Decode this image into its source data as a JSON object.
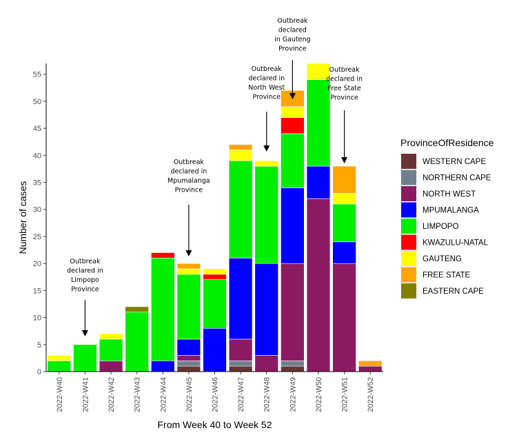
{
  "chart_data": {
    "type": "bar",
    "stacked": true,
    "xlabel": "From Week 40 to Week 52",
    "ylabel": "Number of cases",
    "ylim": [
      0,
      57
    ],
    "yticks": [
      0,
      5,
      10,
      15,
      20,
      25,
      30,
      35,
      40,
      45,
      50,
      55
    ],
    "grid": false,
    "legend_position": "right",
    "legend_title": "ProvinceOfResidence",
    "categories": [
      "2022-W40",
      "2022-W41",
      "2022-W42",
      "2022-W43",
      "2022-W44",
      "2022-W45",
      "2022-W46",
      "2022-W47",
      "2022-W48",
      "2022-W49",
      "2022-W50",
      "2022-W51",
      "2022-W52"
    ],
    "series": [
      {
        "name": "WESTERN CAPE",
        "color": "#6B3333",
        "values": [
          0,
          0,
          0,
          0,
          0,
          1,
          0,
          1,
          0,
          1,
          0,
          0,
          0
        ]
      },
      {
        "name": "NORTHERN CAPE",
        "color": "#708090",
        "values": [
          0,
          0,
          0,
          0,
          0,
          1,
          0,
          1,
          0,
          1,
          0,
          0,
          0
        ]
      },
      {
        "name": "NORTH WEST",
        "color": "#8B1A62",
        "values": [
          0,
          0,
          2,
          0,
          0,
          1,
          0,
          4,
          3,
          18,
          32,
          20,
          1
        ]
      },
      {
        "name": "MPUMALANGA",
        "color": "#0000FF",
        "values": [
          0,
          0,
          0,
          0,
          2,
          3,
          8,
          15,
          17,
          14,
          6,
          4,
          0
        ]
      },
      {
        "name": "LIMPOPO",
        "color": "#00EE00",
        "values": [
          2,
          5,
          4,
          11,
          19,
          12,
          9,
          18,
          18,
          10,
          16,
          7,
          0
        ]
      },
      {
        "name": "KWAZULU-NATAL",
        "color": "#FF0000",
        "values": [
          0,
          0,
          0,
          0,
          1,
          0,
          1,
          0,
          0,
          3,
          0,
          0,
          0
        ]
      },
      {
        "name": "GAUTENG",
        "color": "#FFFF00",
        "values": [
          1,
          0,
          1,
          0,
          0,
          1,
          1,
          2,
          1,
          2,
          3,
          2,
          0
        ]
      },
      {
        "name": "FREE STATE",
        "color": "#FFA500",
        "values": [
          0,
          0,
          0,
          0,
          0,
          1,
          0,
          1,
          0,
          3,
          0,
          5,
          1
        ]
      },
      {
        "name": "EASTERN CAPE",
        "color": "#808000",
        "values": [
          0,
          0,
          0,
          1,
          0,
          0,
          0,
          0,
          0,
          0,
          0,
          0,
          0
        ]
      }
    ],
    "annotations": [
      {
        "category": "2022-W41",
        "lines": [
          "Outbreak",
          "declared in",
          "Limpopo",
          "Province"
        ]
      },
      {
        "category": "2022-W45",
        "lines": [
          "Outbreak",
          "declared in",
          "Mpumalanga",
          "Province"
        ]
      },
      {
        "category": "2022-W48",
        "lines": [
          "Outbreak",
          "declared in",
          "North West",
          "Province"
        ]
      },
      {
        "category": "2022-W49",
        "lines": [
          "Outbreak",
          "declared",
          "in Gauteng",
          "Province"
        ]
      },
      {
        "category": "2022-W51",
        "lines": [
          "Outbreak",
          "declared in",
          "Free State",
          "Province"
        ]
      }
    ]
  }
}
